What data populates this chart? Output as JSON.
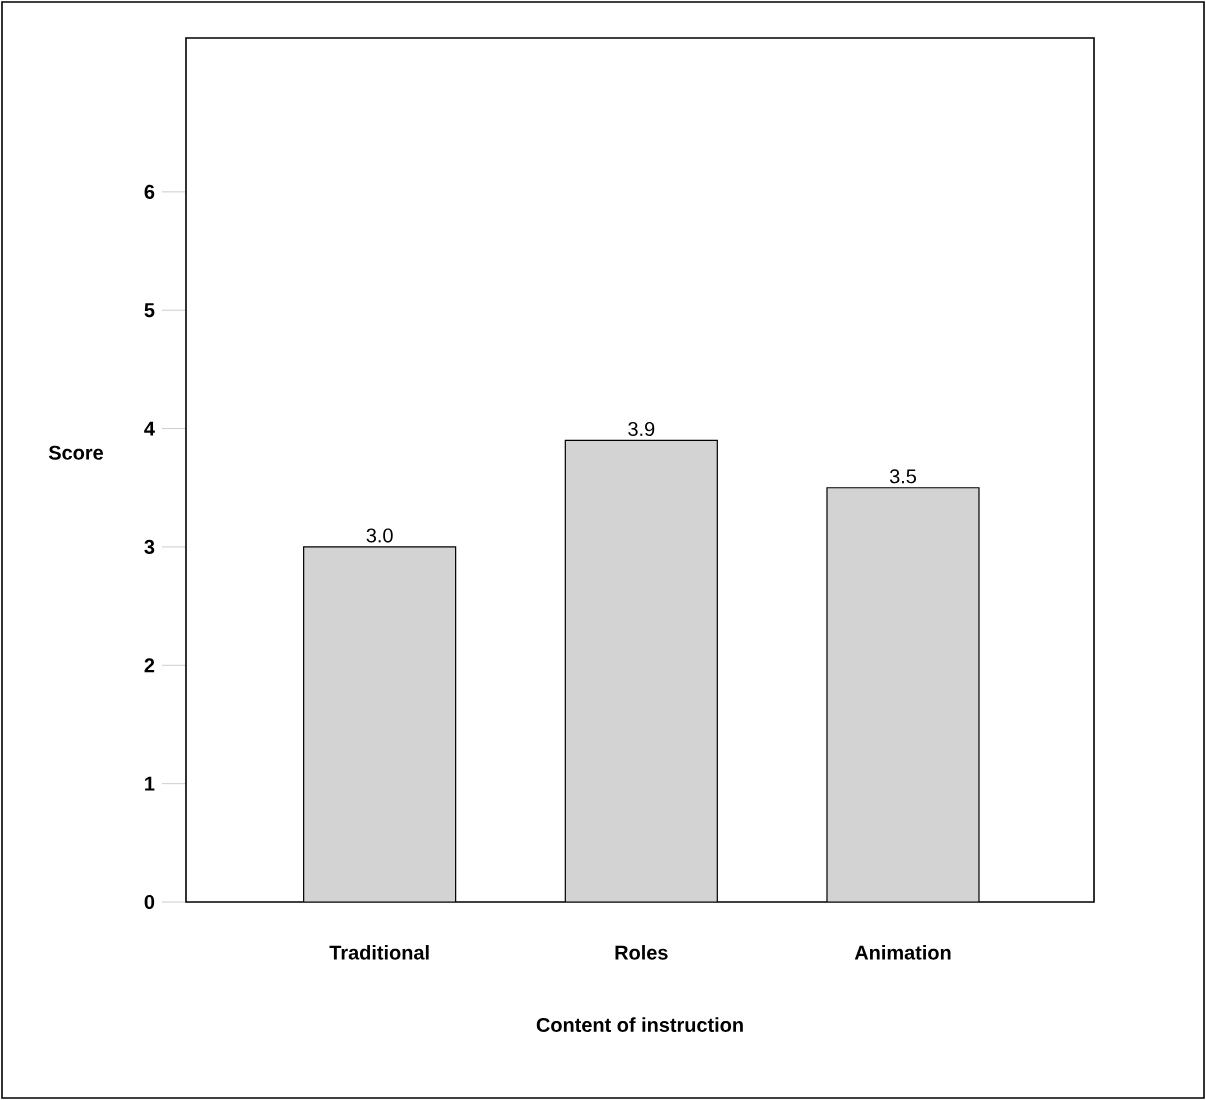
{
  "chart_data": {
    "type": "bar",
    "xlabel": "Content of instruction",
    "ylabel": "Score",
    "categories": [
      "Traditional",
      "Roles",
      "Animation"
    ],
    "values": [
      3.0,
      3.9,
      3.5
    ],
    "value_labels": [
      "3.0",
      "3.9",
      "3.5"
    ],
    "color": "#d3d3d3",
    "ylim": [
      0,
      7.3
    ],
    "yticks": [
      0,
      1,
      2,
      3,
      4,
      5,
      6
    ]
  }
}
